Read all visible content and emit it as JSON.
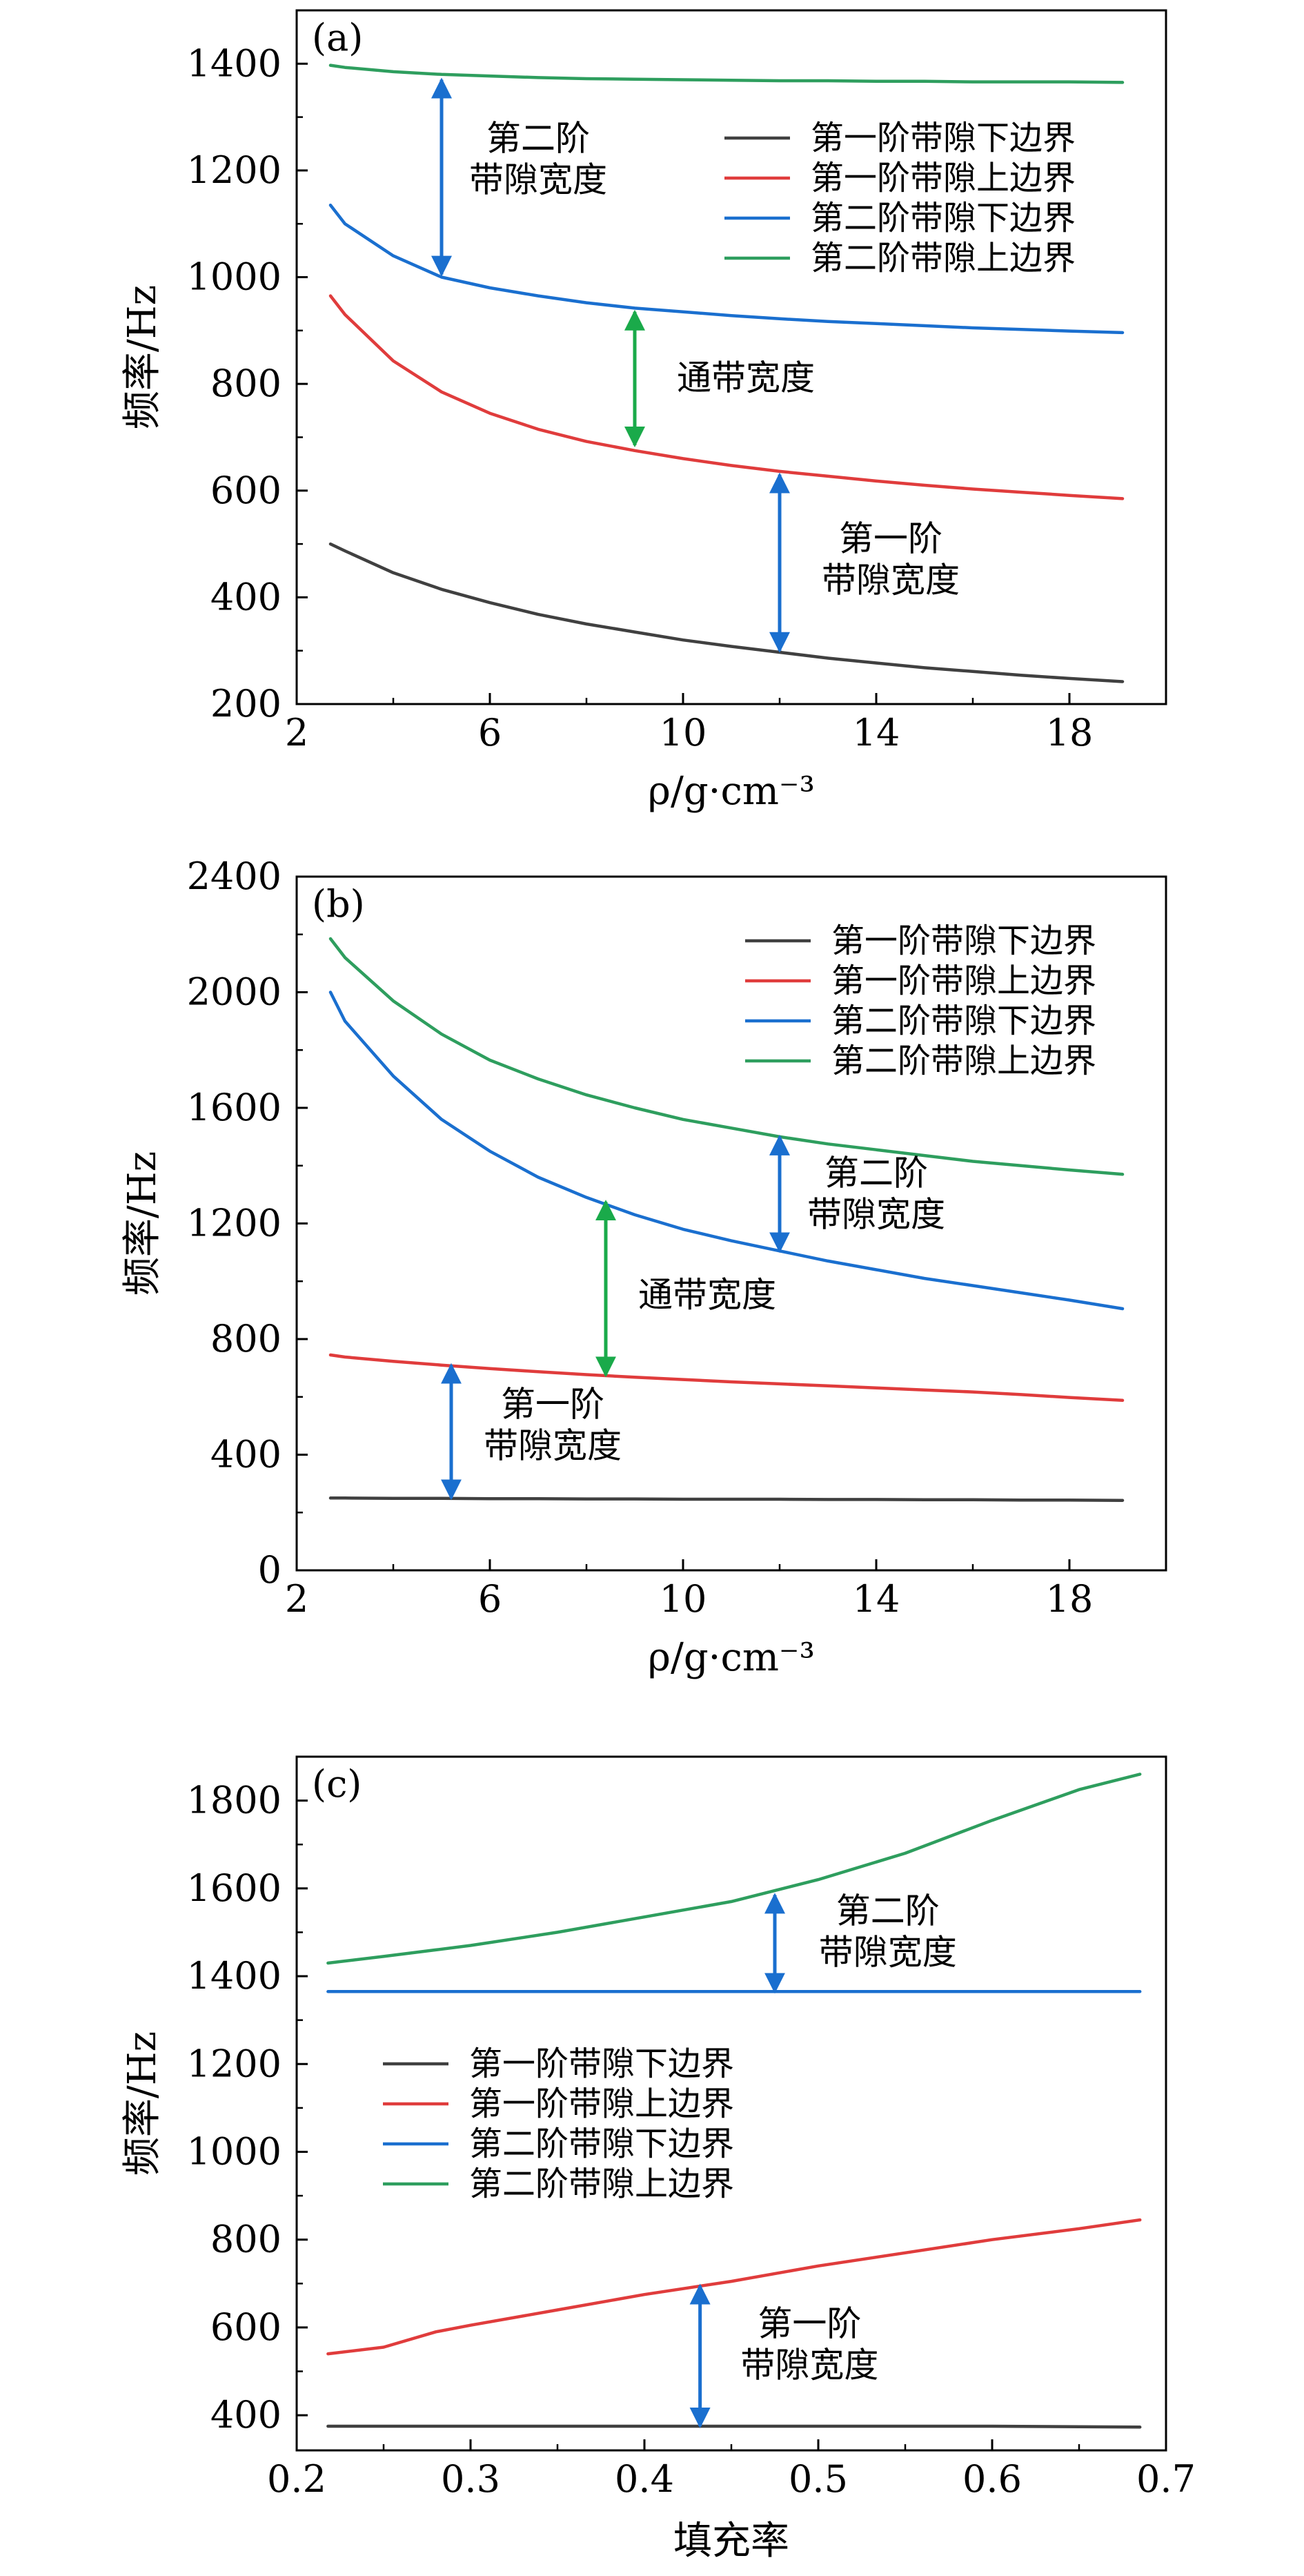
{
  "figure": {
    "legend_entries": [
      "第一阶带隙下边界",
      "第一阶带隙上边界",
      "第二阶带隙下边界",
      "第二阶带隙上边界"
    ],
    "colors": {
      "lower1": "#404040",
      "upper1": "#e03c3c",
      "lower2": "#1a6fcf",
      "upper2": "#2e9e5e",
      "arrow_blue": "#1a6fcf",
      "arrow_green": "#1aaa4a"
    }
  },
  "chart_data": [
    {
      "type": "line",
      "panel_label": "(a)",
      "xlabel": "ρ/g·cm⁻³",
      "ylabel": "频率/Hz",
      "xlim": [
        2,
        20
      ],
      "ylim": [
        200,
        1500
      ],
      "xticks": [
        2,
        6,
        10,
        14,
        18
      ],
      "yticks": [
        200,
        400,
        600,
        800,
        1000,
        1200,
        1400
      ],
      "xtick_labels": [
        "2",
        "6",
        "10",
        "14",
        "18"
      ],
      "ytick_labels": [
        "200",
        "400",
        "600",
        "800",
        "1000",
        "1200",
        "1400"
      ],
      "legend_position": "top-right",
      "x": [
        2.7,
        3,
        4,
        5,
        6,
        7,
        8,
        9,
        10,
        11,
        12,
        13,
        14,
        15,
        16,
        17,
        18,
        19.1
      ],
      "series": [
        {
          "name": "第一阶带隙下边界",
          "color_key": "lower1",
          "values": [
            500,
            487,
            446,
            415,
            390,
            368,
            350,
            335,
            320,
            308,
            297,
            286,
            277,
            268,
            261,
            254,
            248,
            242
          ]
        },
        {
          "name": "第一阶带隙上边界",
          "color_key": "upper1",
          "values": [
            965,
            930,
            843,
            785,
            745,
            715,
            692,
            675,
            660,
            647,
            636,
            627,
            618,
            610,
            603,
            597,
            591,
            585
          ]
        },
        {
          "name": "第二阶带隙下边界",
          "color_key": "lower2",
          "values": [
            1135,
            1100,
            1040,
            1000,
            980,
            965,
            952,
            942,
            935,
            928,
            922,
            917,
            913,
            909,
            905,
            902,
            899,
            896
          ]
        },
        {
          "name": "第二阶带隙上边界",
          "color_key": "upper2",
          "values": [
            1397,
            1393,
            1385,
            1380,
            1377,
            1374,
            1372,
            1371,
            1370,
            1369,
            1368,
            1368,
            1367,
            1367,
            1366,
            1366,
            1366,
            1365
          ]
        }
      ],
      "annotations": [
        {
          "text_lines": [
            "第二阶",
            "带隙宽度"
          ],
          "arrow_x": 5,
          "arrow_from": 1370,
          "arrow_to": 1005,
          "color_key": "arrow_blue",
          "text_x": 7.0,
          "text_y": 1220
        },
        {
          "text_lines": [
            "通带宽度"
          ],
          "arrow_x": 9,
          "arrow_from": 935,
          "arrow_to": 685,
          "color_key": "arrow_green",
          "text_x": 11.3,
          "text_y": 810
        },
        {
          "text_lines": [
            "第一阶",
            "带隙宽度"
          ],
          "arrow_x": 12,
          "arrow_from": 630,
          "arrow_to": 300,
          "color_key": "arrow_blue",
          "text_x": 14.3,
          "text_y": 470
        }
      ]
    },
    {
      "type": "line",
      "panel_label": "(b)",
      "xlabel": "ρ/g·cm⁻³",
      "ylabel": "频率/Hz",
      "xlim": [
        2,
        20
      ],
      "ylim": [
        0,
        2400
      ],
      "xticks": [
        2,
        6,
        10,
        14,
        18
      ],
      "yticks": [
        0,
        400,
        800,
        1200,
        1600,
        2000,
        2400
      ],
      "xtick_labels": [
        "2",
        "6",
        "10",
        "14",
        "18"
      ],
      "ytick_labels": [
        "0",
        "400",
        "800",
        "1200",
        "1600",
        "2000",
        "2400"
      ],
      "legend_position": "top-right",
      "x": [
        2.7,
        3,
        4,
        5,
        6,
        7,
        8,
        9,
        10,
        11,
        12,
        13,
        14,
        15,
        16,
        17,
        18,
        19.1
      ],
      "series": [
        {
          "name": "第一阶带隙下边界",
          "color_key": "lower1",
          "values": [
            250,
            250,
            249,
            249,
            248,
            248,
            247,
            247,
            246,
            246,
            246,
            245,
            245,
            244,
            244,
            243,
            243,
            242
          ]
        },
        {
          "name": "第一阶带隙上边界",
          "color_key": "upper1",
          "values": [
            745,
            738,
            723,
            710,
            698,
            687,
            677,
            668,
            660,
            652,
            645,
            638,
            631,
            624,
            617,
            608,
            598,
            588
          ]
        },
        {
          "name": "第二阶带隙下边界",
          "color_key": "lower2",
          "values": [
            2000,
            1900,
            1710,
            1560,
            1450,
            1360,
            1290,
            1230,
            1180,
            1140,
            1105,
            1070,
            1040,
            1010,
            985,
            960,
            935,
            905
          ]
        },
        {
          "name": "第二阶带隙上边界",
          "color_key": "upper2",
          "values": [
            2185,
            2120,
            1970,
            1855,
            1765,
            1700,
            1645,
            1600,
            1560,
            1530,
            1500,
            1475,
            1455,
            1435,
            1415,
            1400,
            1385,
            1370
          ]
        }
      ],
      "annotations": [
        {
          "text_lines": [
            "第二阶",
            "带隙宽度"
          ],
          "arrow_x": 12,
          "arrow_from": 1500,
          "arrow_to": 1105,
          "color_key": "arrow_blue",
          "text_x": 14.0,
          "text_y": 1300
        },
        {
          "text_lines": [
            "通带宽度"
          ],
          "arrow_x": 8.4,
          "arrow_from": 1275,
          "arrow_to": 675,
          "color_key": "arrow_green",
          "text_x": 10.5,
          "text_y": 950
        },
        {
          "text_lines": [
            "第一阶",
            "带隙宽度"
          ],
          "arrow_x": 5.2,
          "arrow_from": 710,
          "arrow_to": 250,
          "color_key": "arrow_blue",
          "text_x": 7.3,
          "text_y": 500
        }
      ]
    },
    {
      "type": "line",
      "panel_label": "(c)",
      "xlabel": "填充率",
      "ylabel": "频率/Hz",
      "xlim": [
        0.2,
        0.7
      ],
      "ylim": [
        320,
        1900
      ],
      "xticks": [
        0.2,
        0.3,
        0.4,
        0.5,
        0.6,
        0.7
      ],
      "yticks": [
        400,
        600,
        800,
        1000,
        1200,
        1400,
        1600,
        1800
      ],
      "xtick_labels": [
        "0.2",
        "0.3",
        "0.4",
        "0.5",
        "0.6",
        "0.7"
      ],
      "ytick_labels": [
        "400",
        "600",
        "800",
        "1000",
        "1200",
        "1400",
        "1600",
        "1800"
      ],
      "legend_position": "center-left",
      "x": [
        0.218,
        0.25,
        0.28,
        0.3,
        0.35,
        0.4,
        0.45,
        0.5,
        0.55,
        0.6,
        0.65,
        0.685
      ],
      "series": [
        {
          "name": "第一阶带隙下边界",
          "color_key": "lower1",
          "values": [
            375,
            375,
            375,
            375,
            375,
            375,
            375,
            375,
            375,
            375,
            374,
            373
          ]
        },
        {
          "name": "第一阶带隙上边界",
          "color_key": "upper1",
          "values": [
            540,
            555,
            590,
            605,
            640,
            675,
            705,
            740,
            770,
            800,
            825,
            845
          ]
        },
        {
          "name": "第二阶带隙下边界",
          "color_key": "lower2",
          "values": [
            1365,
            1365,
            1365,
            1365,
            1365,
            1365,
            1365,
            1365,
            1365,
            1365,
            1365,
            1365
          ]
        },
        {
          "name": "第二阶带隙上边界",
          "color_key": "upper2",
          "values": [
            1430,
            1445,
            1460,
            1470,
            1500,
            1535,
            1570,
            1620,
            1680,
            1755,
            1825,
            1860
          ]
        }
      ],
      "annotations": [
        {
          "text_lines": [
            "第二阶",
            "带隙宽度"
          ],
          "arrow_x": 0.475,
          "arrow_from": 1585,
          "arrow_to": 1365,
          "color_key": "arrow_blue",
          "text_x": 0.54,
          "text_y": 1500
        },
        {
          "text_lines": [
            "第一阶",
            "带隙宽度"
          ],
          "arrow_x": 0.432,
          "arrow_from": 695,
          "arrow_to": 375,
          "color_key": "arrow_blue",
          "text_x": 0.495,
          "text_y": 560
        }
      ]
    }
  ]
}
